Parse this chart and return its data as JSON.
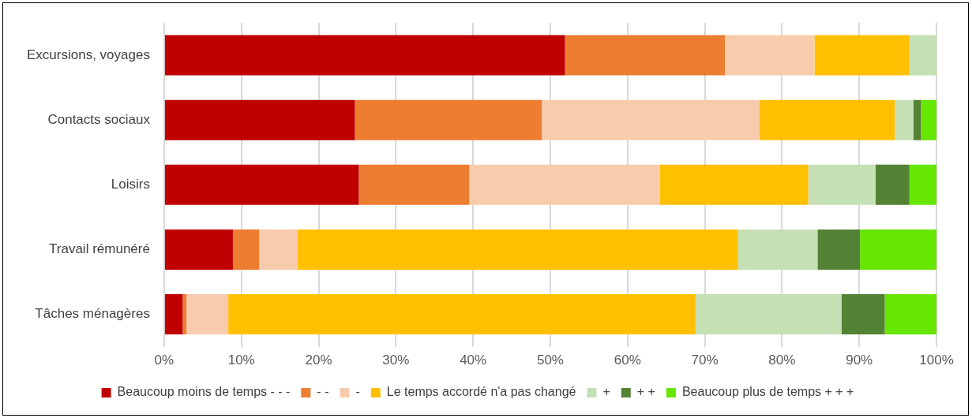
{
  "chart_data": {
    "type": "bar",
    "orientation": "horizontal",
    "stacked": true,
    "categories": [
      "Excursions, voyages",
      "Contacts sociaux",
      "Loisirs",
      "Travail rémunéré",
      "Tâches ménagères"
    ],
    "series": [
      {
        "name": "Beaucoup moins de temps - - -",
        "color": "#c00000",
        "values": [
          51.9,
          24.7,
          25.2,
          8.9,
          2.4
        ]
      },
      {
        "name": "- -",
        "color": "#ed7d31",
        "values": [
          20.7,
          24.2,
          14.3,
          3.4,
          0.5
        ]
      },
      {
        "name": "-",
        "color": "#f8cbad",
        "values": [
          11.6,
          28.2,
          24.7,
          5.0,
          5.4
        ]
      },
      {
        "name": "Le temps accordé n'a pas changé",
        "color": "#ffc000",
        "values": [
          12.3,
          17.5,
          19.2,
          57.0,
          60.5
        ]
      },
      {
        "name": "+",
        "color": "#c5e0b4",
        "values": [
          3.5,
          2.4,
          8.7,
          10.3,
          18.9
        ]
      },
      {
        "name": "+ +",
        "color": "#548235",
        "values": [
          0,
          1.0,
          4.4,
          5.5,
          5.6
        ]
      },
      {
        "name": "Beaucoup plus de temps + + +",
        "color": "#66e600",
        "values": [
          0,
          2.0,
          3.5,
          9.9,
          6.7
        ]
      }
    ],
    "xlim": [
      0,
      100
    ],
    "xticks": [
      {
        "value": 0,
        "label": "0%"
      },
      {
        "value": 10,
        "label": "10%"
      },
      {
        "value": 20,
        "label": "20%"
      },
      {
        "value": 30,
        "label": "30%"
      },
      {
        "value": 40,
        "label": "40%"
      },
      {
        "value": 50,
        "label": "50%"
      },
      {
        "value": 60,
        "label": "60%"
      },
      {
        "value": 70,
        "label": "70%"
      },
      {
        "value": 80,
        "label": "80%"
      },
      {
        "value": 90,
        "label": "90%"
      },
      {
        "value": 100,
        "label": "100%"
      }
    ],
    "grid": "x",
    "legend": "bottom"
  }
}
